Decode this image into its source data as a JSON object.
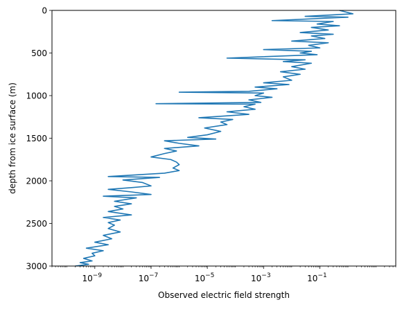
{
  "chart_data": {
    "type": "line",
    "title": "",
    "xlabel": "Observed electric field strength",
    "ylabel": "depth from ice surface (m)",
    "x_scale": "log",
    "xlim": [
      3e-11,
      50
    ],
    "ylim": [
      3000,
      0
    ],
    "y_inverted": true,
    "grid": false,
    "legend": "none",
    "x_ticks": [
      {
        "value": 1e-09,
        "base": "10",
        "exp": "−9"
      },
      {
        "value": 1e-07,
        "base": "10",
        "exp": "−7"
      },
      {
        "value": 1e-05,
        "base": "10",
        "exp": "−5"
      },
      {
        "value": 0.001,
        "base": "10",
        "exp": "−3"
      },
      {
        "value": 0.1,
        "base": "10",
        "exp": "−1"
      }
    ],
    "y_ticks": [
      0,
      500,
      1000,
      1500,
      2000,
      2500,
      3000
    ],
    "series": [
      {
        "color": "#1f77b4",
        "points": [
          [
            0.5,
            0
          ],
          [
            1.5,
            40
          ],
          [
            0.03,
            70
          ],
          [
            1.0,
            80
          ],
          [
            0.002,
            120
          ],
          [
            0.3,
            130
          ],
          [
            0.08,
            160
          ],
          [
            0.5,
            180
          ],
          [
            0.05,
            200
          ],
          [
            0.2,
            230
          ],
          [
            0.02,
            260
          ],
          [
            0.3,
            280
          ],
          [
            0.05,
            300
          ],
          [
            0.15,
            330
          ],
          [
            0.01,
            360
          ],
          [
            0.2,
            380
          ],
          [
            0.04,
            410
          ],
          [
            0.1,
            440
          ],
          [
            0.001,
            460
          ],
          [
            0.05,
            480
          ],
          [
            0.02,
            500
          ],
          [
            0.08,
            520
          ],
          [
            5e-05,
            560
          ],
          [
            0.03,
            580
          ],
          [
            0.005,
            600
          ],
          [
            0.05,
            620
          ],
          [
            0.01,
            660
          ],
          [
            0.03,
            690
          ],
          [
            0.004,
            720
          ],
          [
            0.02,
            750
          ],
          [
            0.005,
            780
          ],
          [
            0.01,
            820
          ],
          [
            0.001,
            850
          ],
          [
            0.008,
            870
          ],
          [
            0.0005,
            900
          ],
          [
            0.003,
            920
          ],
          [
            0.0003,
            950
          ],
          [
            1e-06,
            960
          ],
          [
            0.001,
            970
          ],
          [
            0.0005,
            1000
          ],
          [
            0.002,
            1020
          ],
          [
            0.0003,
            1050
          ],
          [
            0.0008,
            1080
          ],
          [
            1.5e-07,
            1095
          ],
          [
            0.0005,
            1100
          ],
          [
            0.0002,
            1130
          ],
          [
            0.0005,
            1160
          ],
          [
            5e-05,
            1190
          ],
          [
            0.0003,
            1220
          ],
          [
            5e-06,
            1260
          ],
          [
            8e-05,
            1280
          ],
          [
            3e-05,
            1310
          ],
          [
            5e-05,
            1340
          ],
          [
            8e-06,
            1380
          ],
          [
            3e-05,
            1420
          ],
          [
            1e-05,
            1460
          ],
          [
            2e-06,
            1490
          ],
          [
            2e-05,
            1510
          ],
          [
            3e-07,
            1530
          ],
          [
            1e-06,
            1560
          ],
          [
            5e-06,
            1590
          ],
          [
            3e-07,
            1620
          ],
          [
            8e-07,
            1650
          ],
          [
            3e-07,
            1680
          ],
          [
            1e-07,
            1720
          ],
          [
            5e-07,
            1750
          ],
          [
            8e-07,
            1780
          ],
          [
            1e-06,
            1810
          ],
          [
            6e-07,
            1850
          ],
          [
            1e-06,
            1880
          ],
          [
            3e-07,
            1910
          ],
          [
            3e-09,
            1950
          ],
          [
            2e-07,
            1960
          ],
          [
            1e-08,
            1990
          ],
          [
            5e-08,
            2020
          ],
          [
            1e-07,
            2060
          ],
          [
            2e-08,
            2080
          ],
          [
            3e-09,
            2100
          ],
          [
            2e-08,
            2130
          ],
          [
            1e-07,
            2160
          ],
          [
            2e-09,
            2180
          ],
          [
            3e-08,
            2200
          ],
          [
            5e-09,
            2240
          ],
          [
            2e-08,
            2270
          ],
          [
            5e-09,
            2300
          ],
          [
            1e-08,
            2330
          ],
          [
            3e-09,
            2360
          ],
          [
            2e-08,
            2400
          ],
          [
            2e-09,
            2430
          ],
          [
            8e-09,
            2460
          ],
          [
            3e-09,
            2490
          ],
          [
            5e-09,
            2520
          ],
          [
            3e-09,
            2560
          ],
          [
            8e-09,
            2600
          ],
          [
            2e-09,
            2640
          ],
          [
            4e-09,
            2680
          ],
          [
            1e-09,
            2720
          ],
          [
            3e-09,
            2750
          ],
          [
            5e-10,
            2790
          ],
          [
            2e-09,
            2820
          ],
          [
            8e-10,
            2850
          ],
          [
            1e-09,
            2880
          ],
          [
            4e-10,
            2910
          ],
          [
            8e-10,
            2940
          ],
          [
            3e-10,
            2960
          ],
          [
            6e-10,
            2980
          ],
          [
            2e-10,
            3000
          ]
        ]
      }
    ]
  }
}
